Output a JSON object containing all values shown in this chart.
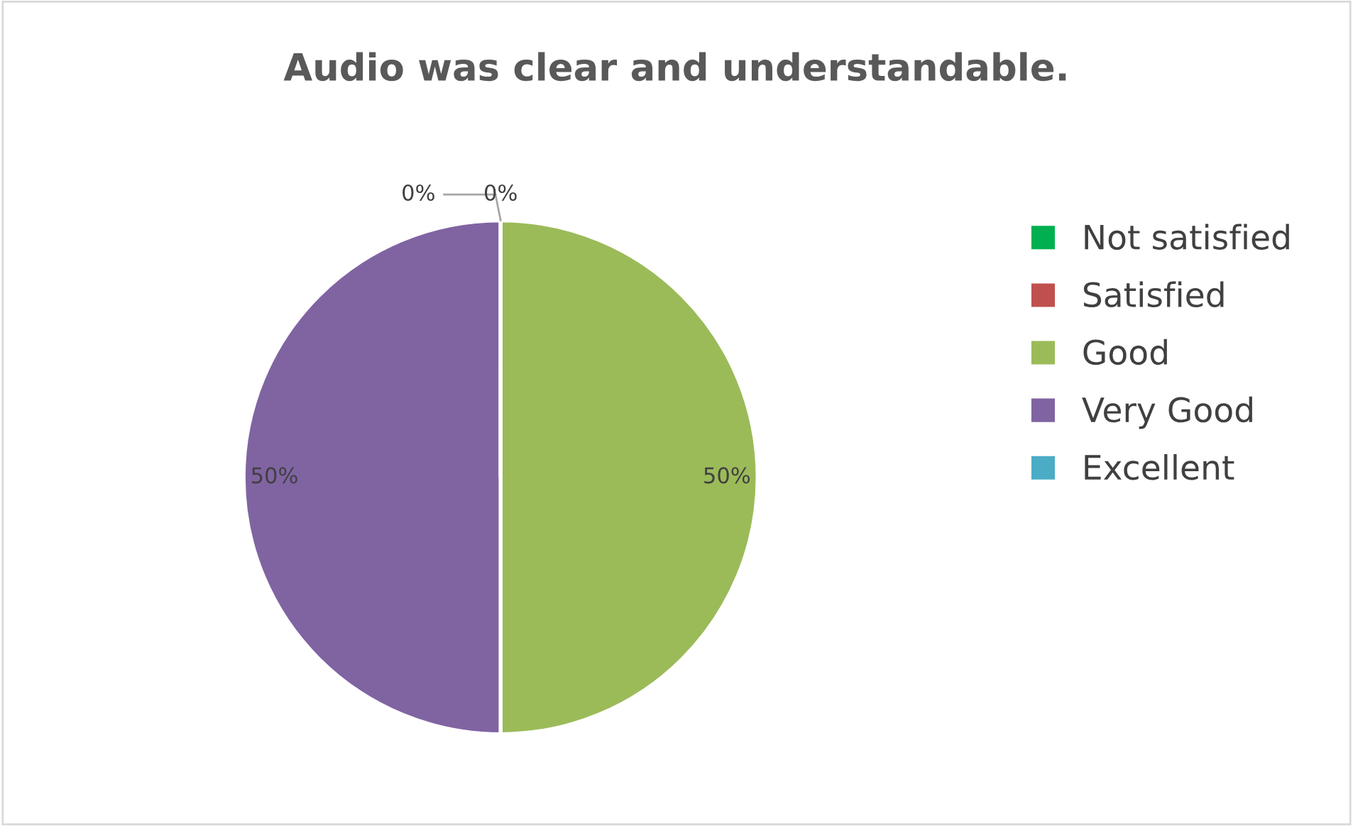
{
  "chart_data": {
    "type": "pie",
    "title": "Audio was clear and understandable.",
    "categories": [
      "Not satisfied",
      "Satisfied",
      "Good",
      "Very Good",
      "Excellent"
    ],
    "values": [
      0,
      0,
      50,
      50,
      0
    ],
    "colors": [
      "#00b050",
      "#c0504d",
      "#9bbb59",
      "#8064a2",
      "#4bacc6"
    ],
    "value_labels": [
      "0%",
      "0%",
      "50%",
      "50%",
      null
    ],
    "legend": "right"
  }
}
